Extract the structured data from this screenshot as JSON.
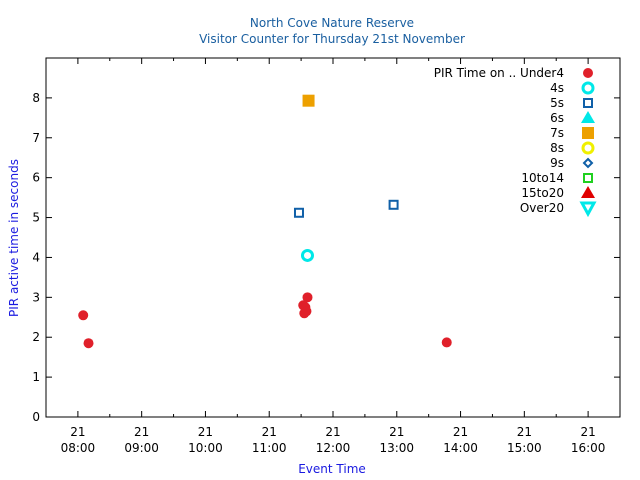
{
  "chart_data": {
    "type": "scatter",
    "title": "North Cove Nature Reserve",
    "subtitle": "Visitor Counter for Thursday 21st November",
    "xlabel": "Event Time",
    "ylabel": "PIR active time in seconds",
    "xlim": [
      "07:30",
      "16:30"
    ],
    "ylim": [
      0,
      9
    ],
    "x_ticks": [
      {
        "day": "21",
        "time": "08:00"
      },
      {
        "day": "21",
        "time": "09:00"
      },
      {
        "day": "21",
        "time": "10:00"
      },
      {
        "day": "21",
        "time": "11:00"
      },
      {
        "day": "21",
        "time": "12:00"
      },
      {
        "day": "21",
        "time": "13:00"
      },
      {
        "day": "21",
        "time": "14:00"
      },
      {
        "day": "21",
        "time": "15:00"
      },
      {
        "day": "21",
        "time": "16:00"
      }
    ],
    "y_ticks": [
      "0",
      "1",
      "2",
      "3",
      "4",
      "5",
      "6",
      "7",
      "8"
    ],
    "legend_title": "PIR Time on ..",
    "legend_position": "top-right",
    "series": [
      {
        "name": "Under4",
        "marker": "circle",
        "filled": true,
        "color": "#e0202a",
        "points": [
          [
            "08:05",
            2.55
          ],
          [
            "08:10",
            1.85
          ],
          [
            "11:32",
            2.8
          ],
          [
            "11:33",
            2.6
          ],
          [
            "11:34",
            2.75
          ],
          [
            "11:35",
            2.65
          ],
          [
            "11:36",
            3.0
          ],
          [
            "13:47",
            1.87
          ]
        ]
      },
      {
        "name": "4s",
        "marker": "circle",
        "filled": false,
        "color": "#00e8e8",
        "points": [
          [
            "11:36",
            4.05
          ]
        ]
      },
      {
        "name": "5s",
        "marker": "square",
        "filled": false,
        "color": "#1060a8",
        "points": [
          [
            "11:28",
            5.12
          ],
          [
            "12:57",
            5.32
          ]
        ]
      },
      {
        "name": "6s",
        "marker": "triangle-up",
        "filled": true,
        "color": "#00e8e8",
        "points": []
      },
      {
        "name": "7s",
        "marker": "square",
        "filled": true,
        "color": "#eda000",
        "points": [
          [
            "11:37",
            7.93
          ]
        ]
      },
      {
        "name": "8s",
        "marker": "circle",
        "filled": false,
        "color": "#f0f000",
        "points": []
      },
      {
        "name": "9s",
        "marker": "diamond",
        "filled": false,
        "color": "#1060a8",
        "points": []
      },
      {
        "name": "10to14",
        "marker": "square",
        "filled": false,
        "color": "#20d020",
        "points": []
      },
      {
        "name": "15to20",
        "marker": "triangle-up",
        "filled": true,
        "color": "#e00000",
        "points": []
      },
      {
        "name": "Over20",
        "marker": "triangle-down",
        "filled": false,
        "color": "#00e8e8",
        "points": []
      }
    ]
  }
}
